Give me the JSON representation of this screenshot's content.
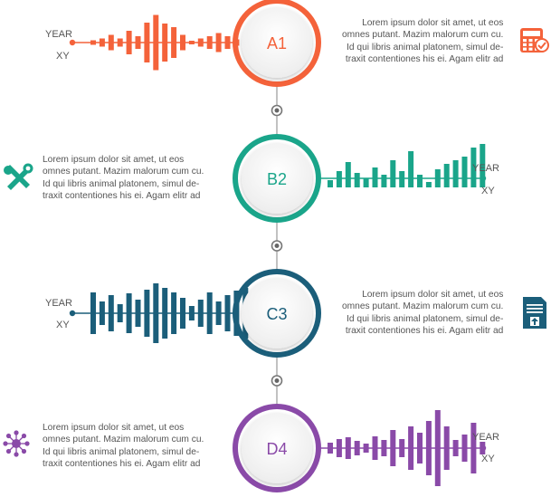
{
  "colors": {
    "orange": "#f4623a",
    "green": "#1aa58a",
    "teal": "#1b5e7a",
    "purple": "#8a4aa8",
    "connector": "#999999"
  },
  "rows": [
    {
      "label": "A1",
      "color": "#f4623a",
      "bars_side": "left",
      "year_label": "YEAR",
      "xy_label": "XY",
      "bars": [
        5,
        9,
        17,
        9,
        26,
        14,
        44,
        61,
        42,
        34,
        17,
        4,
        9,
        14,
        21,
        14,
        7,
        14
      ],
      "icon": "calculator-icon",
      "text_lines": [
        "Lorem ipsum dolor sit amet, ut eos",
        "omnes putant. Mazim malorum cum cu.",
        "Id qui libris animal platonem, simul de-",
        "traxit contentiones his ei. Agam elitr ad"
      ]
    },
    {
      "label": "B2",
      "color": "#1aa58a",
      "bars_side": "right",
      "year_label": "YEAR",
      "xy_label": "XY",
      "bars": [
        8,
        18,
        28,
        16,
        10,
        22,
        14,
        30,
        18,
        40,
        14,
        6,
        20,
        26,
        30,
        34,
        44,
        48
      ],
      "icon": "tools-icon",
      "text_lines": [
        "Lorem ipsum dolor sit amet, ut eos",
        "omnes putant. Mazim malorum cum cu.",
        "Id qui libris animal platonem, simul de-",
        "traxit contentiones his ei. Agam elitr ad"
      ]
    },
    {
      "label": "C3",
      "color": "#1b5e7a",
      "bars_side": "left",
      "year_label": "YEAR",
      "xy_label": "XY",
      "bars": [
        46,
        26,
        40,
        20,
        44,
        30,
        52,
        66,
        56,
        46,
        34,
        16,
        30,
        46,
        26,
        40,
        50,
        56
      ],
      "icon": "document-upload-icon",
      "text_lines": [
        "Lorem ipsum dolor sit amet, ut eos",
        "omnes putant. Mazim malorum cum cu.",
        "Id qui libris animal platonem, simul de-",
        "traxit contentiones his ei. Agam elitr ad"
      ]
    },
    {
      "label": "D4",
      "color": "#8a4aa8",
      "bars_side": "right",
      "year_label": "YEAR",
      "xy_label": "XY",
      "bars": [
        12,
        20,
        24,
        16,
        10,
        26,
        18,
        40,
        20,
        48,
        34,
        60,
        84,
        48,
        18,
        30,
        56,
        14
      ],
      "icon": "network-hub-icon",
      "text_lines": [
        "Lorem ipsum dolor sit amet, ut eos",
        "omnes putant. Mazim malorum cum cu.",
        "Id qui libris animal platonem, simul de-",
        "traxit contentiones his ei. Agam elitr ad"
      ]
    }
  ]
}
